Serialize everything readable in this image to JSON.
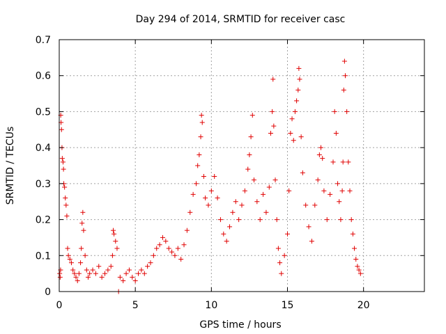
{
  "chart_data": {
    "type": "scatter",
    "title": "Day 294 of 2014, SRMTID for receiver casc",
    "xlabel": "GPS time / hours",
    "ylabel": "SRMTID / TECUs",
    "xlim": [
      0,
      24
    ],
    "ylim": [
      0,
      0.7
    ],
    "x_ticks": [
      0,
      5,
      10,
      15,
      20
    ],
    "x_tick_labels": [
      "0",
      "5",
      "10",
      "15",
      "20"
    ],
    "y_ticks": [
      0,
      0.1,
      0.2,
      0.3,
      0.4,
      0.5,
      0.6,
      0.7
    ],
    "y_tick_labels": [
      "0",
      "0.1",
      "0.2",
      "0.3",
      "0.4",
      "0.5",
      "0.6",
      "0.7"
    ],
    "grid": true,
    "marker": "+",
    "marker_color": "#e00000",
    "series": [
      {
        "name": "SRMTID",
        "points": [
          [
            0.03,
            0.05
          ],
          [
            0.06,
            0.04
          ],
          [
            0.09,
            0.06
          ],
          [
            0.1,
            0.49
          ],
          [
            0.12,
            0.47
          ],
          [
            0.15,
            0.45
          ],
          [
            0.18,
            0.4
          ],
          [
            0.2,
            0.37
          ],
          [
            0.25,
            0.36
          ],
          [
            0.28,
            0.34
          ],
          [
            0.3,
            0.3
          ],
          [
            0.35,
            0.29
          ],
          [
            0.4,
            0.26
          ],
          [
            0.45,
            0.24
          ],
          [
            0.5,
            0.21
          ],
          [
            0.55,
            0.12
          ],
          [
            0.6,
            0.1
          ],
          [
            0.7,
            0.09
          ],
          [
            0.8,
            0.08
          ],
          [
            0.9,
            0.06
          ],
          [
            1.0,
            0.05
          ],
          [
            1.1,
            0.04
          ],
          [
            1.2,
            0.03
          ],
          [
            1.3,
            0.05
          ],
          [
            1.4,
            0.08
          ],
          [
            1.45,
            0.12
          ],
          [
            1.5,
            0.19
          ],
          [
            1.55,
            0.22
          ],
          [
            1.6,
            0.17
          ],
          [
            1.7,
            0.1
          ],
          [
            1.8,
            0.06
          ],
          [
            1.9,
            0.04
          ],
          [
            2.0,
            0.05
          ],
          [
            2.2,
            0.06
          ],
          [
            2.4,
            0.05
          ],
          [
            2.6,
            0.07
          ],
          [
            2.8,
            0.04
          ],
          [
            3.0,
            0.05
          ],
          [
            3.2,
            0.06
          ],
          [
            3.4,
            0.07
          ],
          [
            3.5,
            0.1
          ],
          [
            3.55,
            0.17
          ],
          [
            3.6,
            0.16
          ],
          [
            3.7,
            0.14
          ],
          [
            3.8,
            0.12
          ],
          [
            3.9,
            0.0
          ],
          [
            4.0,
            0.04
          ],
          [
            4.2,
            0.03
          ],
          [
            4.4,
            0.05
          ],
          [
            4.6,
            0.06
          ],
          [
            4.8,
            0.04
          ],
          [
            5.0,
            0.03
          ],
          [
            5.2,
            0.05
          ],
          [
            5.4,
            0.06
          ],
          [
            5.6,
            0.05
          ],
          [
            5.8,
            0.07
          ],
          [
            6.0,
            0.08
          ],
          [
            6.2,
            0.1
          ],
          [
            6.4,
            0.12
          ],
          [
            6.6,
            0.13
          ],
          [
            6.8,
            0.15
          ],
          [
            7.0,
            0.14
          ],
          [
            7.2,
            0.12
          ],
          [
            7.4,
            0.11
          ],
          [
            7.6,
            0.1
          ],
          [
            7.8,
            0.12
          ],
          [
            8.0,
            0.09
          ],
          [
            8.2,
            0.13
          ],
          [
            8.4,
            0.17
          ],
          [
            8.6,
            0.22
          ],
          [
            8.8,
            0.27
          ],
          [
            9.0,
            0.3
          ],
          [
            9.1,
            0.35
          ],
          [
            9.2,
            0.38
          ],
          [
            9.3,
            0.43
          ],
          [
            9.35,
            0.49
          ],
          [
            9.4,
            0.47
          ],
          [
            9.5,
            0.32
          ],
          [
            9.6,
            0.26
          ],
          [
            9.8,
            0.24
          ],
          [
            10.0,
            0.28
          ],
          [
            10.2,
            0.32
          ],
          [
            10.4,
            0.26
          ],
          [
            10.6,
            0.2
          ],
          [
            10.8,
            0.16
          ],
          [
            11.0,
            0.14
          ],
          [
            11.2,
            0.18
          ],
          [
            11.4,
            0.22
          ],
          [
            11.6,
            0.25
          ],
          [
            11.8,
            0.2
          ],
          [
            12.0,
            0.24
          ],
          [
            12.2,
            0.28
          ],
          [
            12.4,
            0.34
          ],
          [
            12.5,
            0.38
          ],
          [
            12.6,
            0.43
          ],
          [
            12.7,
            0.49
          ],
          [
            12.8,
            0.31
          ],
          [
            13.0,
            0.25
          ],
          [
            13.2,
            0.2
          ],
          [
            13.4,
            0.27
          ],
          [
            13.6,
            0.22
          ],
          [
            13.8,
            0.29
          ],
          [
            13.9,
            0.44
          ],
          [
            14.0,
            0.5
          ],
          [
            14.05,
            0.59
          ],
          [
            14.1,
            0.46
          ],
          [
            14.2,
            0.31
          ],
          [
            14.3,
            0.2
          ],
          [
            14.4,
            0.12
          ],
          [
            14.5,
            0.08
          ],
          [
            14.6,
            0.05
          ],
          [
            14.8,
            0.1
          ],
          [
            15.0,
            0.16
          ],
          [
            15.1,
            0.28
          ],
          [
            15.2,
            0.44
          ],
          [
            15.3,
            0.48
          ],
          [
            15.4,
            0.42
          ],
          [
            15.5,
            0.5
          ],
          [
            15.6,
            0.53
          ],
          [
            15.7,
            0.56
          ],
          [
            15.75,
            0.62
          ],
          [
            15.8,
            0.59
          ],
          [
            15.9,
            0.43
          ],
          [
            16.0,
            0.33
          ],
          [
            16.2,
            0.24
          ],
          [
            16.4,
            0.18
          ],
          [
            16.6,
            0.14
          ],
          [
            16.8,
            0.24
          ],
          [
            17.0,
            0.31
          ],
          [
            17.1,
            0.38
          ],
          [
            17.2,
            0.4
          ],
          [
            17.3,
            0.37
          ],
          [
            17.4,
            0.28
          ],
          [
            17.6,
            0.2
          ],
          [
            17.8,
            0.27
          ],
          [
            18.0,
            0.36
          ],
          [
            18.1,
            0.5
          ],
          [
            18.2,
            0.44
          ],
          [
            18.3,
            0.3
          ],
          [
            18.4,
            0.25
          ],
          [
            18.5,
            0.2
          ],
          [
            18.6,
            0.28
          ],
          [
            18.65,
            0.36
          ],
          [
            18.7,
            0.56
          ],
          [
            18.75,
            0.64
          ],
          [
            18.8,
            0.6
          ],
          [
            18.9,
            0.5
          ],
          [
            19.0,
            0.36
          ],
          [
            19.1,
            0.28
          ],
          [
            19.2,
            0.2
          ],
          [
            19.3,
            0.16
          ],
          [
            19.4,
            0.12
          ],
          [
            19.5,
            0.09
          ],
          [
            19.6,
            0.07
          ],
          [
            19.7,
            0.06
          ],
          [
            19.8,
            0.05
          ]
        ]
      }
    ]
  }
}
